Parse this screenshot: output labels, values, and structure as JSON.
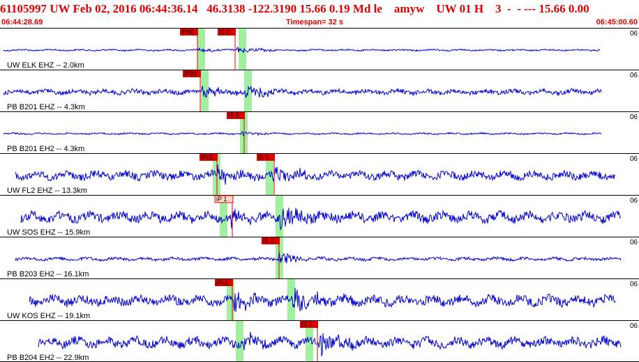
{
  "header": {
    "title": "61105997 UW Feb 02, 2016 06:44:36.14   46.3138 -122.3190 15.66 0.19 Md le    amyw    UW 01 H    3  -  - --- 15.66 0.00",
    "start_time": "06:44:28.69",
    "timespan": "Timespan=  32 s",
    "end_time": "06:45:00.60"
  },
  "colors": {
    "header_text": "#e00000",
    "trace": "#0000d0",
    "pick_box": "#e00000",
    "pick_box_light": "#ffd8c8",
    "window_band": "#a0f0a0",
    "pick_line": "#e00000",
    "separator": "#000000"
  },
  "traces": [
    {
      "label": "UW ELK EHZ --  2.0km",
      "right_label": "06",
      "picks": [
        {
          "text": "iPd0",
          "x": 258
        },
        {
          "text": "iS 0",
          "x": 312
        }
      ],
      "bands": [
        283,
        342
      ],
      "amp": 2,
      "noise": 1,
      "onset_p": 283,
      "onset_s": 340,
      "burst": 35,
      "start": 5,
      "end": 860
    },
    {
      "label": "PB B201 EHZ --  4.3km",
      "right_label": "06",
      "picks": [
        {
          "text": "iP2d",
          "x": 262
        }
      ],
      "bands": [
        288,
        350
      ],
      "amp": 6,
      "noise": 3,
      "onset_p": 290,
      "onset_s": 350,
      "burst": 25,
      "start": 5,
      "end": 862
    },
    {
      "label": "PB B201 EH2 --  4.3km",
      "right_label": "06",
      "picks": [
        {
          "text": "iS 0",
          "x": 325
        }
      ],
      "bands": [
        344
      ],
      "amp": 1,
      "noise": 1,
      "onset_p": 347,
      "onset_s": 347,
      "burst": 30,
      "start": 5,
      "end": 862
    },
    {
      "label": "UW FL2 EHZ -- 13.3km",
      "right_label": "06",
      "picks": [
        {
          "text": "iPc1",
          "x": 286
        },
        {
          "text": "iS 1",
          "x": 368
        }
      ],
      "bands": [
        305,
        381
      ],
      "amp": 8,
      "noise": 5,
      "onset_p": 312,
      "onset_s": 390,
      "burst": 25,
      "start": 22,
      "end": 882
    },
    {
      "label": "UW SOS EHZ -- 15.9km",
      "right_label": "06",
      "picks": [
        {
          "text": "iP 1",
          "x": 308,
          "light": true
        }
      ],
      "bands": [
        315,
        395
      ],
      "amp": 10,
      "noise": 6,
      "onset_p": 330,
      "onset_s": 400,
      "burst": 30,
      "start": 30,
      "end": 890
    },
    {
      "label": "PB B203 EH2 -- 16.1km",
      "right_label": "06",
      "picks": [
        {
          "text": "iS 1",
          "x": 375
        }
      ],
      "bands": [
        395
      ],
      "amp": 4,
      "noise": 2,
      "onset_p": 400,
      "onset_s": 400,
      "burst": 30,
      "start": 22,
      "end": 890
    },
    {
      "label": "UW KOS EHZ -- 19.1km",
      "right_label": "06",
      "picks": [
        {
          "text": "iPc1",
          "x": 308
        }
      ],
      "bands": [
        325,
        412
      ],
      "amp": 10,
      "noise": 6,
      "onset_p": 335,
      "onset_s": 420,
      "burst": 30,
      "start": 42,
      "end": 882
    },
    {
      "label": "PB B204 EH2 -- 22.9km",
      "right_label": "06",
      "picks": [
        {
          "text": "iS 1",
          "x": 430
        }
      ],
      "bands": [
        338,
        438
      ],
      "amp": 8,
      "noise": 6,
      "onset_p": 350,
      "onset_s": 455,
      "burst": 30,
      "start": 55,
      "end": 890
    }
  ]
}
